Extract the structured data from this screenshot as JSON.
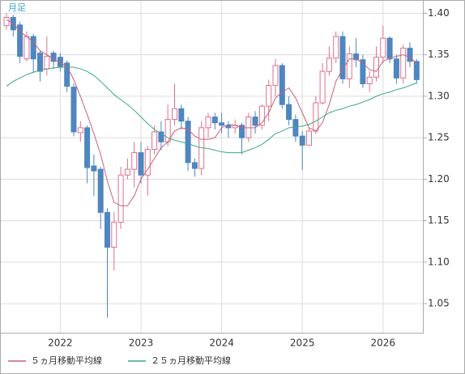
{
  "chart_data": {
    "type": "candlestick",
    "label": "月足",
    "categories": [
      null,
      null,
      null,
      null,
      null,
      null,
      null,
      null,
      "2022",
      null,
      null,
      null,
      null,
      null,
      null,
      null,
      null,
      null,
      null,
      null,
      "2023",
      null,
      null,
      null,
      null,
      null,
      null,
      null,
      null,
      null,
      null,
      null,
      "2024",
      null,
      null,
      null,
      null,
      null,
      null,
      null,
      null,
      null,
      null,
      null,
      "2025",
      null,
      null,
      null,
      null,
      null,
      null,
      null,
      null,
      null,
      null,
      null,
      "2026",
      null,
      null,
      null,
      null,
      null
    ],
    "open": [
      1.385,
      1.395,
      1.386,
      1.345,
      1.372,
      1.352,
      1.333,
      1.352,
      1.347,
      1.34,
      1.311,
      1.256,
      1.262,
      1.216,
      1.212,
      1.16,
      1.118,
      1.148,
      1.205,
      1.212,
      1.232,
      1.205,
      1.236,
      1.257,
      1.245,
      1.272,
      1.285,
      1.27,
      1.22,
      1.213,
      1.262,
      1.275,
      1.268,
      1.265,
      1.262,
      1.265,
      1.25,
      1.275,
      1.265,
      1.288,
      1.313,
      1.337,
      1.29,
      1.272,
      1.252,
      1.241,
      1.258,
      1.292,
      1.33,
      1.346,
      1.372,
      1.321,
      1.351,
      1.344,
      1.315,
      1.323,
      1.347,
      1.37,
      1.345,
      1.322,
      1.358,
      1.342
    ],
    "high": [
      1.4,
      1.398,
      1.39,
      1.378,
      1.375,
      1.355,
      1.372,
      1.355,
      1.352,
      1.343,
      1.315,
      1.27,
      1.265,
      1.23,
      1.215,
      1.165,
      1.16,
      1.215,
      1.225,
      1.245,
      1.245,
      1.24,
      1.265,
      1.27,
      1.29,
      1.315,
      1.29,
      1.275,
      1.225,
      1.27,
      1.28,
      1.28,
      1.28,
      1.27,
      1.272,
      1.268,
      1.28,
      1.282,
      1.29,
      1.32,
      1.345,
      1.34,
      1.3,
      1.278,
      1.258,
      1.262,
      1.3,
      1.34,
      1.36,
      1.378,
      1.378,
      1.36,
      1.37,
      1.35,
      1.33,
      1.36,
      1.385,
      1.372,
      1.35,
      1.362,
      1.365,
      1.345
    ],
    "low": [
      1.38,
      1.372,
      1.34,
      1.342,
      1.328,
      1.318,
      1.325,
      1.333,
      1.33,
      1.305,
      1.252,
      1.245,
      1.195,
      1.18,
      1.14,
      1.033,
      1.09,
      1.14,
      1.2,
      1.19,
      1.195,
      1.18,
      1.23,
      1.235,
      1.24,
      1.265,
      1.26,
      1.21,
      1.203,
      1.205,
      1.25,
      1.26,
      1.255,
      1.25,
      1.255,
      1.23,
      1.245,
      1.255,
      1.26,
      1.27,
      1.3,
      1.285,
      1.265,
      1.245,
      1.211,
      1.245,
      1.255,
      1.29,
      1.325,
      1.34,
      1.315,
      1.31,
      1.335,
      1.31,
      1.305,
      1.318,
      1.34,
      1.34,
      1.315,
      1.315,
      1.335,
      1.315
    ],
    "close": [
      1.395,
      1.38,
      1.348,
      1.372,
      1.345,
      1.33,
      1.348,
      1.342,
      1.336,
      1.312,
      1.257,
      1.262,
      1.214,
      1.21,
      1.16,
      1.118,
      1.148,
      1.205,
      1.212,
      1.232,
      1.205,
      1.236,
      1.257,
      1.245,
      1.272,
      1.285,
      1.27,
      1.22,
      1.213,
      1.262,
      1.275,
      1.268,
      1.265,
      1.262,
      1.265,
      1.25,
      1.275,
      1.265,
      1.288,
      1.313,
      1.337,
      1.29,
      1.272,
      1.252,
      1.241,
      1.258,
      1.292,
      1.33,
      1.346,
      1.372,
      1.321,
      1.351,
      1.344,
      1.315,
      1.323,
      1.347,
      1.37,
      1.345,
      1.322,
      1.358,
      1.342,
      1.32
    ],
    "up_color": "#e0708e",
    "down_color": "#4f86bf",
    "series": [
      {
        "name": "５ヵ月移動平均線",
        "color": "#c8607a",
        "values": [
          1.392,
          1.388,
          1.378,
          1.372,
          1.365,
          1.355,
          1.35,
          1.345,
          1.34,
          1.336,
          1.32,
          1.3,
          1.278,
          1.255,
          1.23,
          1.198,
          1.172,
          1.168,
          1.168,
          1.18,
          1.2,
          1.212,
          1.225,
          1.238,
          1.245,
          1.258,
          1.262,
          1.26,
          1.252,
          1.248,
          1.248,
          1.25,
          1.262,
          1.266,
          1.265,
          1.262,
          1.262,
          1.262,
          1.268,
          1.28,
          1.298,
          1.305,
          1.31,
          1.298,
          1.28,
          1.262,
          1.258,
          1.268,
          1.29,
          1.318,
          1.333,
          1.345,
          1.345,
          1.34,
          1.332,
          1.33,
          1.342,
          1.346,
          1.348,
          1.35,
          1.347,
          1.34
        ]
      },
      {
        "name": "２５ヵ月移動平均線",
        "color": "#3aa883",
        "values": [
          1.312,
          1.318,
          1.322,
          1.326,
          1.329,
          1.331,
          1.333,
          1.334,
          1.335,
          1.335,
          1.335,
          1.333,
          1.33,
          1.325,
          1.318,
          1.31,
          1.302,
          1.296,
          1.29,
          1.283,
          1.275,
          1.267,
          1.26,
          1.255,
          1.25,
          1.247,
          1.245,
          1.243,
          1.24,
          1.238,
          1.237,
          1.235,
          1.233,
          1.232,
          1.232,
          1.232,
          1.235,
          1.238,
          1.242,
          1.248,
          1.255,
          1.258,
          1.262,
          1.263,
          1.264,
          1.266,
          1.27,
          1.275,
          1.28,
          1.283,
          1.285,
          1.288,
          1.29,
          1.293,
          1.296,
          1.3,
          1.303,
          1.305,
          1.308,
          1.31,
          1.313,
          1.316
        ]
      }
    ],
    "ylim": [
      1.014,
      1.416
    ],
    "yticks": [
      1.05,
      {
        "value": 1.1,
        "label": "1.10"
      },
      1.15,
      {
        "value": 1.2,
        "label": "1.20"
      },
      1.25,
      {
        "value": 1.3,
        "label": "1.30"
      },
      1.35,
      {
        "value": 1.4,
        "label": "1.40"
      }
    ],
    "grid": true
  }
}
